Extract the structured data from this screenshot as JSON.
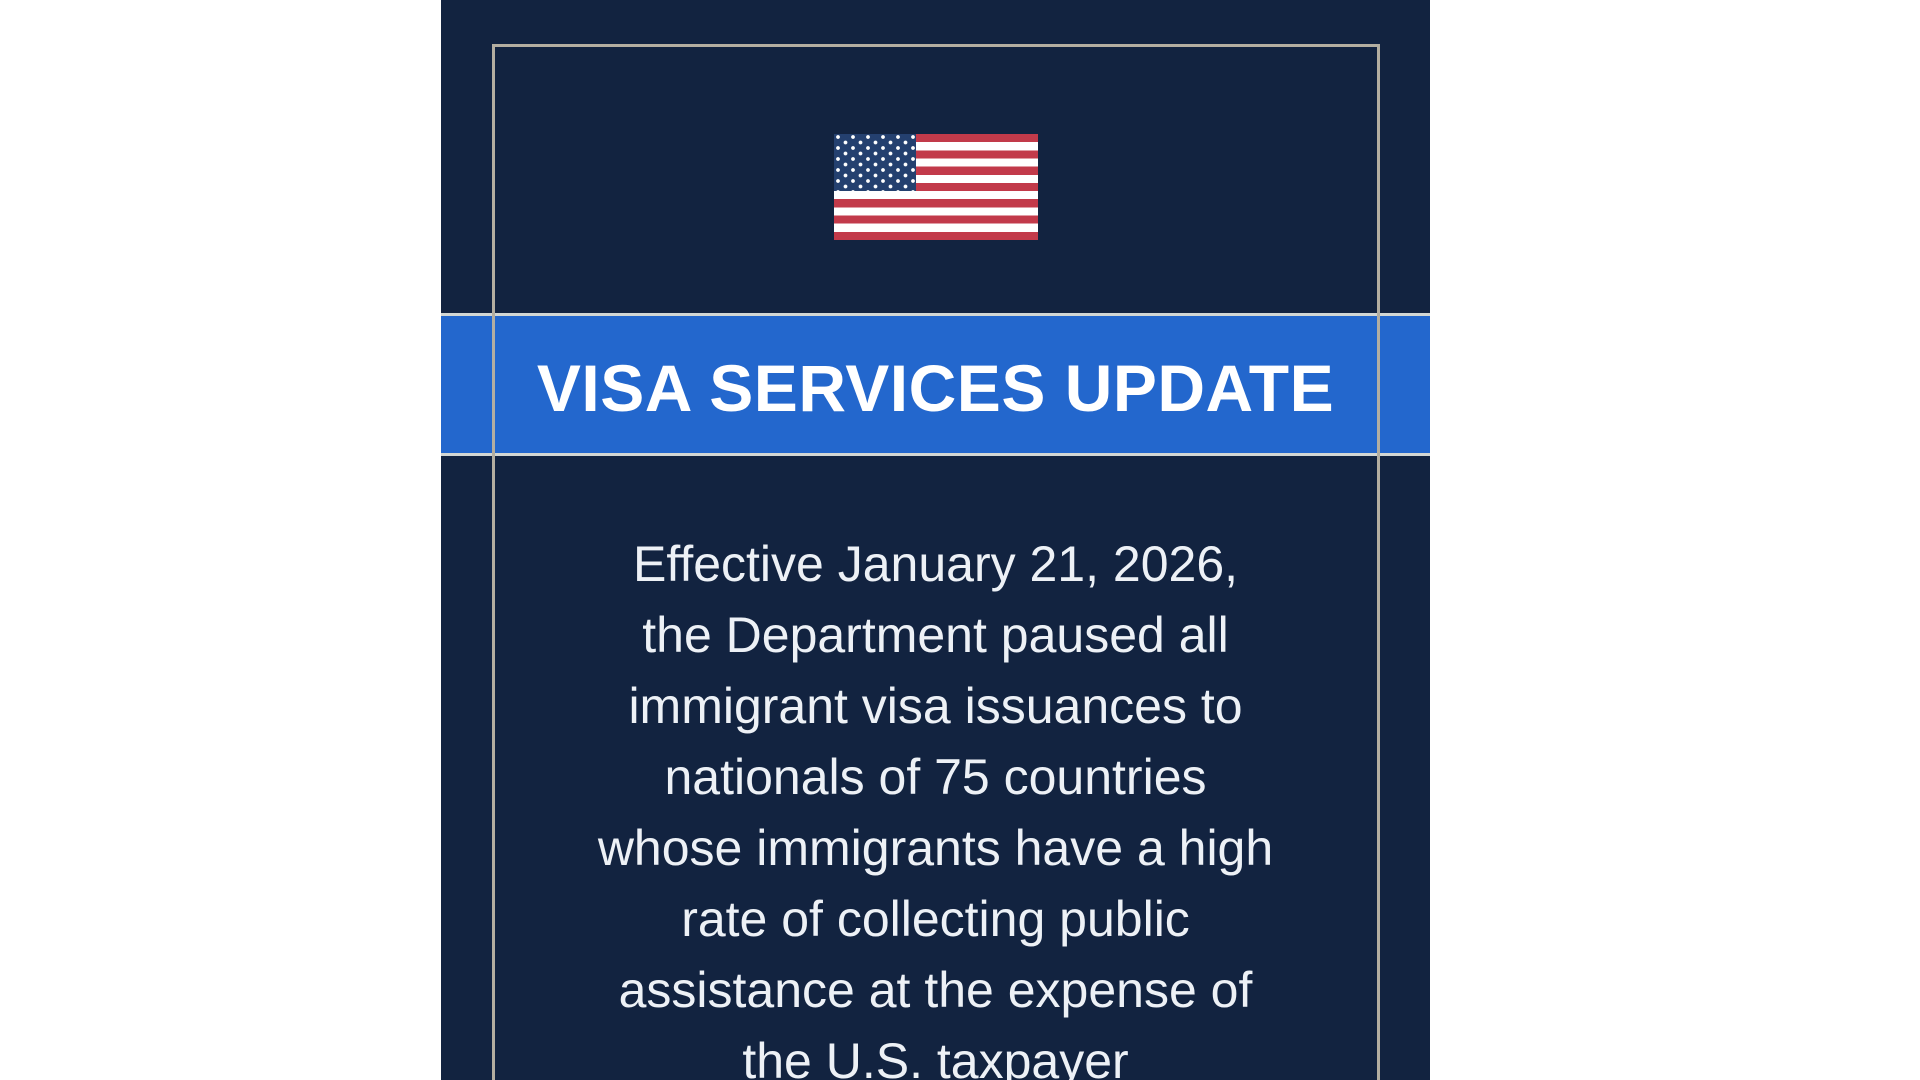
{
  "page": {
    "background_color": "#ffffff"
  },
  "card": {
    "background_color": "#122340",
    "frame_color": "#b3aea1",
    "flag": {
      "icon": "us-flag-icon",
      "stripe_red": "#c23a4a",
      "stripe_white": "#ffffff",
      "canton_blue": "#24406f",
      "star_color": "#ffffff"
    },
    "banner": {
      "title": "VISA SERVICES UPDATE",
      "background_color": "#2367cd",
      "edge_line_color": "#d3d7d4",
      "text_color": "#ffffff"
    },
    "body": {
      "text_color": "#edf1f6",
      "lines": [
        "Effective January 21, 2026,",
        "the Department paused all",
        "immigrant visa issuances to",
        "nationals of 75 countries",
        "whose immigrants have a high",
        "rate of collecting public",
        "assistance at the expense of",
        "the U.S. taxpayer"
      ]
    }
  }
}
